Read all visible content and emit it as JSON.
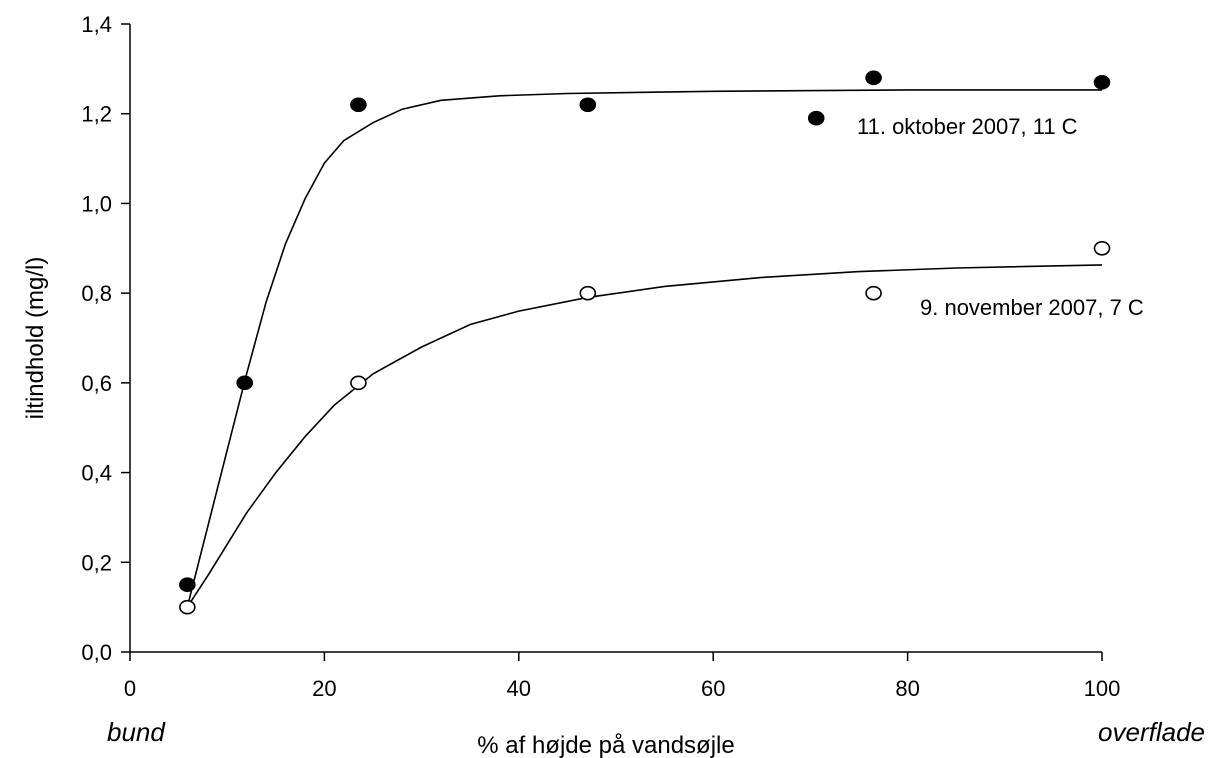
{
  "chart_data": {
    "type": "scatter",
    "xlabel": "% af højde på vandsøjle",
    "ylabel": "iltindhold (mg/l)",
    "xlim": [
      0,
      100
    ],
    "ylim": [
      0.0,
      1.4
    ],
    "x_ticks": [
      0,
      20,
      40,
      60,
      80,
      100
    ],
    "x_tick_labels": [
      "0",
      "20",
      "40",
      "60",
      "80",
      "100"
    ],
    "y_ticks": [
      0.0,
      0.2,
      0.4,
      0.6,
      0.8,
      1.0,
      1.2,
      1.4
    ],
    "y_tick_labels": [
      "0,0",
      "0,2",
      "0,4",
      "0,6",
      "0,8",
      "1,0",
      "1,2",
      "1,4"
    ],
    "x_end_labels": {
      "left": "bund",
      "right": "overflade"
    },
    "grid": false,
    "series": [
      {
        "name": "11. oktober 2007, 11 C",
        "marker": "filled-circle",
        "color": "#000000",
        "points": [
          {
            "x": 5.9,
            "y": 0.15
          },
          {
            "x": 11.8,
            "y": 0.6
          },
          {
            "x": 23.5,
            "y": 1.22
          },
          {
            "x": 47.1,
            "y": 1.22
          },
          {
            "x": 70.6,
            "y": 1.19
          },
          {
            "x": 76.5,
            "y": 1.28
          },
          {
            "x": 100,
            "y": 1.27
          }
        ],
        "fit_curve": [
          {
            "x": 5.9,
            "y": 0.1
          },
          {
            "x": 8,
            "y": 0.28
          },
          {
            "x": 10,
            "y": 0.45
          },
          {
            "x": 12,
            "y": 0.62
          },
          {
            "x": 14,
            "y": 0.78
          },
          {
            "x": 16,
            "y": 0.91
          },
          {
            "x": 18,
            "y": 1.01
          },
          {
            "x": 20,
            "y": 1.09
          },
          {
            "x": 22,
            "y": 1.14
          },
          {
            "x": 25,
            "y": 1.18
          },
          {
            "x": 28,
            "y": 1.21
          },
          {
            "x": 32,
            "y": 1.23
          },
          {
            "x": 38,
            "y": 1.24
          },
          {
            "x": 45,
            "y": 1.245
          },
          {
            "x": 60,
            "y": 1.25
          },
          {
            "x": 80,
            "y": 1.253
          },
          {
            "x": 100,
            "y": 1.253
          }
        ]
      },
      {
        "name": "9. november 2007, 7 C",
        "marker": "open-circle",
        "color": "#000000",
        "points": [
          {
            "x": 5.9,
            "y": 0.1
          },
          {
            "x": 23.5,
            "y": 0.6
          },
          {
            "x": 47.1,
            "y": 0.8
          },
          {
            "x": 76.5,
            "y": 0.8
          },
          {
            "x": 100,
            "y": 0.9
          }
        ],
        "fit_curve": [
          {
            "x": 5.9,
            "y": 0.1
          },
          {
            "x": 8,
            "y": 0.17
          },
          {
            "x": 10,
            "y": 0.24
          },
          {
            "x": 12,
            "y": 0.31
          },
          {
            "x": 15,
            "y": 0.4
          },
          {
            "x": 18,
            "y": 0.48
          },
          {
            "x": 21,
            "y": 0.55
          },
          {
            "x": 25,
            "y": 0.62
          },
          {
            "x": 30,
            "y": 0.68
          },
          {
            "x": 35,
            "y": 0.73
          },
          {
            "x": 40,
            "y": 0.76
          },
          {
            "x": 47,
            "y": 0.79
          },
          {
            "x": 55,
            "y": 0.815
          },
          {
            "x": 65,
            "y": 0.835
          },
          {
            "x": 75,
            "y": 0.848
          },
          {
            "x": 85,
            "y": 0.856
          },
          {
            "x": 100,
            "y": 0.863
          }
        ]
      }
    ]
  }
}
